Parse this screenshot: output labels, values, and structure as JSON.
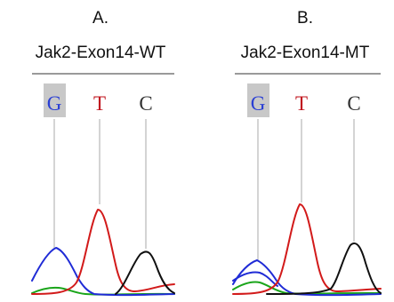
{
  "panels": [
    {
      "id": "A",
      "letter": "A.",
      "title": "Jak2-Exon14-WT",
      "bases": [
        {
          "label": "G",
          "color": "#2a3fd4",
          "highlighted": true
        },
        {
          "label": "T",
          "color": "#c0141e",
          "highlighted": false
        },
        {
          "label": "C",
          "color": "#333333",
          "highlighted": false
        }
      ]
    },
    {
      "id": "B",
      "letter": "B.",
      "title": "Jak2-Exon14-MT",
      "bases": [
        {
          "label": "G",
          "color": "#2a3fd4",
          "highlighted": true
        },
        {
          "label": "T",
          "color": "#c0141e",
          "highlighted": false
        },
        {
          "label": "C",
          "color": "#333333",
          "highlighted": false
        }
      ]
    }
  ],
  "trace_colors": {
    "blue": "#1f2bd6",
    "red": "#d21a1a",
    "black": "#101010",
    "green": "#1aa51a"
  },
  "highlight_color": "#c8c8c8",
  "divider_color": "#9a9a9a",
  "guide_color": "#bdbdbd"
}
